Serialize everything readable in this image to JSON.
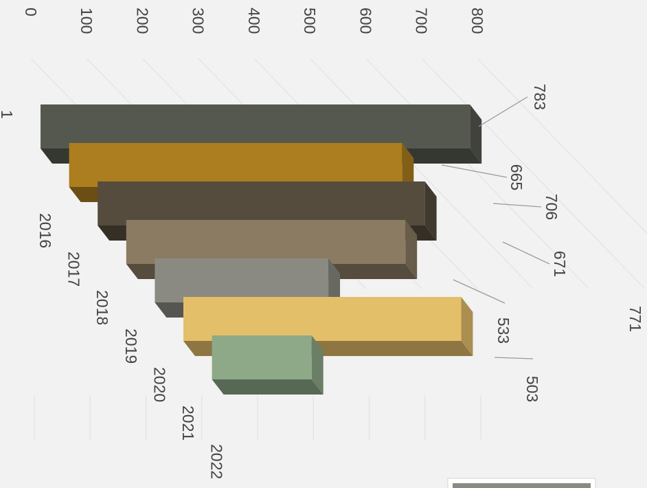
{
  "chart_data": {
    "type": "bar",
    "orientation": "vertical-3d (image rotated 90 degrees clockwise)",
    "title": "",
    "xlabel": "",
    "ylabel": "",
    "ylim": [
      0,
      800
    ],
    "y_ticks": [
      "0",
      "100",
      "200",
      "300",
      "400",
      "500",
      "600",
      "700",
      "800"
    ],
    "category_axis_label": "1",
    "categories": [
      "2016",
      "2017",
      "2018",
      "2019",
      "2020",
      "2021",
      "2022"
    ],
    "values": [
      783,
      665,
      706,
      671,
      533,
      771,
      503
    ],
    "data_labels": [
      "783",
      "665",
      "706",
      "671",
      "533",
      "771",
      "503"
    ],
    "colors": [
      "#55584f",
      "#ad7e1f",
      "#554c3e",
      "#8b7b62",
      "#8b8a82",
      "#e4bf6a",
      "#8da988"
    ],
    "grid": true,
    "legend": {
      "position": "bottom-right",
      "partially_visible": true,
      "swatch_color": "#8b8a82"
    }
  }
}
